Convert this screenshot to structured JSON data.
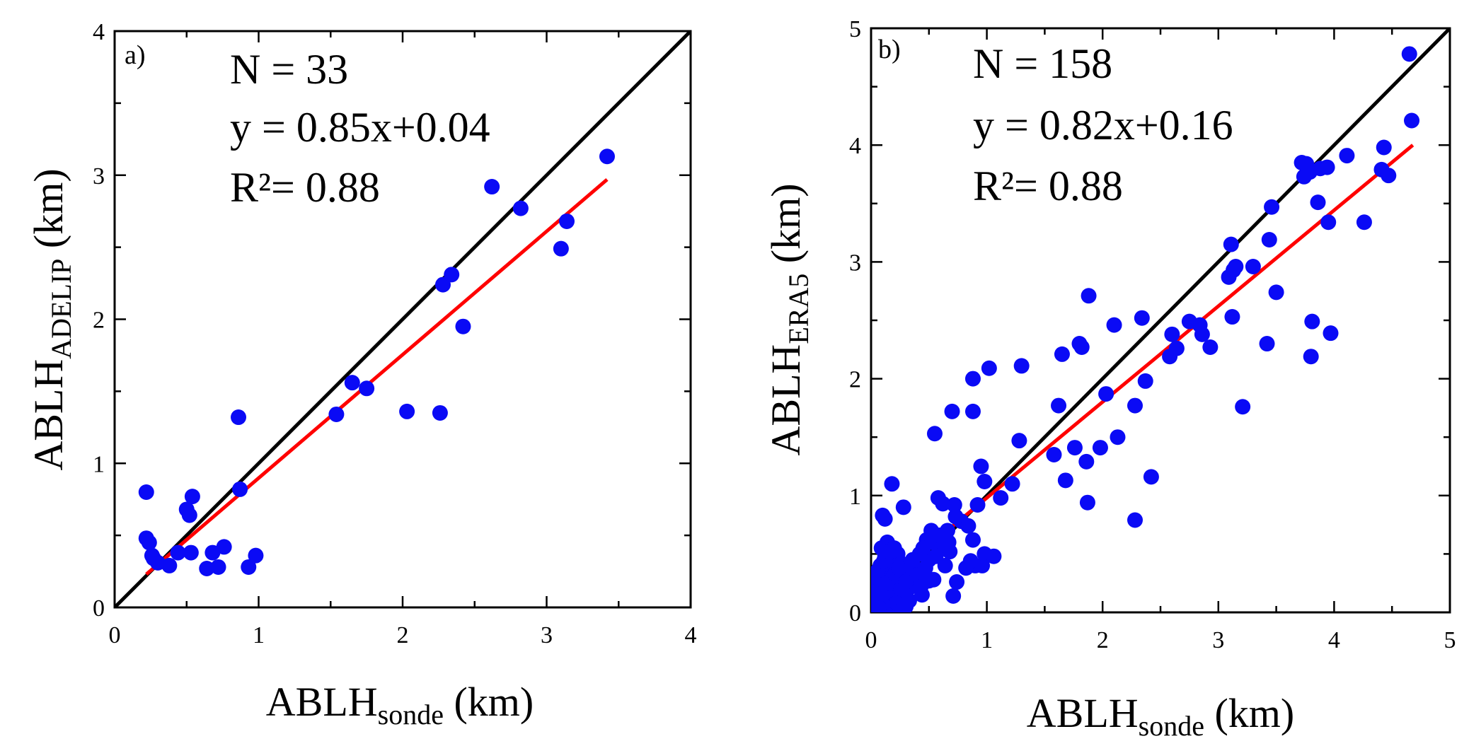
{
  "chart_data": [
    {
      "type": "scatter",
      "panel_label": "a)",
      "xlabel": {
        "main": "ABLH",
        "sub": "sonde",
        "unit": " (km)"
      },
      "ylabel": {
        "main": "ABLH",
        "sub": "ADELIP",
        "unit": " (km)"
      },
      "xlim": [
        0,
        4
      ],
      "ylim": [
        0,
        4
      ],
      "xticks": [
        "0",
        "1",
        "2",
        "3",
        "4"
      ],
      "yticks": [
        "0",
        "1",
        "2",
        "3",
        "4"
      ],
      "stats": {
        "n": "N = 33",
        "fit": "y = 0.85x+0.04",
        "r2": "R²= 0.88"
      },
      "one_to_one_line": {
        "x": [
          0,
          4
        ],
        "y": [
          0,
          4
        ],
        "color": "#000000"
      },
      "fit_line": {
        "x": [
          0.22,
          3.42
        ],
        "y": [
          0.23,
          2.97
        ],
        "color": "#ff0000"
      },
      "point_color": "#0a0af5",
      "points": [
        [
          0.22,
          0.8
        ],
        [
          0.22,
          0.48
        ],
        [
          0.24,
          0.45
        ],
        [
          0.26,
          0.36
        ],
        [
          0.3,
          0.31
        ],
        [
          0.38,
          0.29
        ],
        [
          0.44,
          0.38
        ],
        [
          0.5,
          0.68
        ],
        [
          0.52,
          0.64
        ],
        [
          0.53,
          0.38
        ],
        [
          0.54,
          0.77
        ],
        [
          0.64,
          0.27
        ],
        [
          0.68,
          0.38
        ],
        [
          0.72,
          0.28
        ],
        [
          0.76,
          0.42
        ],
        [
          0.86,
          1.32
        ],
        [
          0.87,
          0.82
        ],
        [
          0.93,
          0.28
        ],
        [
          0.98,
          0.36
        ],
        [
          1.54,
          1.34
        ],
        [
          1.65,
          1.56
        ],
        [
          1.75,
          1.52
        ],
        [
          2.03,
          1.36
        ],
        [
          2.26,
          1.35
        ],
        [
          2.28,
          2.24
        ],
        [
          2.34,
          2.31
        ],
        [
          2.42,
          1.95
        ],
        [
          2.62,
          2.92
        ],
        [
          2.82,
          2.77
        ],
        [
          3.1,
          2.49
        ],
        [
          3.14,
          2.68
        ],
        [
          3.42,
          3.13
        ],
        [
          0.27,
          0.34
        ]
      ]
    },
    {
      "type": "scatter",
      "panel_label": "b)",
      "xlabel": {
        "main": "ABLH",
        "sub": "sonde",
        "unit": " (km)"
      },
      "ylabel": {
        "main": "ABLH",
        "sub": "ERA5",
        "unit": " (km)"
      },
      "xlim": [
        0,
        5
      ],
      "ylim": [
        0,
        5
      ],
      "xticks": [
        "0",
        "1",
        "2",
        "3",
        "4",
        "5"
      ],
      "yticks": [
        "0",
        "1",
        "2",
        "3",
        "4",
        "5"
      ],
      "stats": {
        "n": "N = 158",
        "fit": "y = 0.82x+0.16",
        "r2": "R²= 0.88"
      },
      "one_to_one_line": {
        "x": [
          0,
          5
        ],
        "y": [
          0,
          5
        ],
        "color": "#000000"
      },
      "fit_line": {
        "x": [
          0.0,
          4.68
        ],
        "y": [
          0.16,
          4.0
        ],
        "color": "#ff0000"
      },
      "point_color": "#0a0af5",
      "points": [
        [
          0.02,
          0.05
        ],
        [
          0.03,
          0.22
        ],
        [
          0.04,
          0.12
        ],
        [
          0.05,
          0.3
        ],
        [
          0.06,
          0.02
        ],
        [
          0.07,
          0.18
        ],
        [
          0.08,
          0.4
        ],
        [
          0.09,
          0.55
        ],
        [
          0.1,
          0.08
        ],
        [
          0.1,
          0.83
        ],
        [
          0.11,
          0.28
        ],
        [
          0.12,
          0.8
        ],
        [
          0.12,
          0.48
        ],
        [
          0.13,
          0.15
        ],
        [
          0.14,
          0.6
        ],
        [
          0.15,
          0.35
        ],
        [
          0.15,
          0.05
        ],
        [
          0.16,
          0.22
        ],
        [
          0.17,
          0.45
        ],
        [
          0.18,
          1.1
        ],
        [
          0.18,
          0.1
        ],
        [
          0.19,
          0.3
        ],
        [
          0.2,
          0.55
        ],
        [
          0.2,
          0.02
        ],
        [
          0.21,
          0.4
        ],
        [
          0.22,
          0.18
        ],
        [
          0.23,
          0.5
        ],
        [
          0.24,
          0.25
        ],
        [
          0.25,
          0.08
        ],
        [
          0.26,
          0.42
        ],
        [
          0.27,
          0.12
        ],
        [
          0.28,
          0.9
        ],
        [
          0.29,
          0.3
        ],
        [
          0.3,
          0.05
        ],
        [
          0.32,
          0.2
        ],
        [
          0.35,
          0.38
        ],
        [
          0.38,
          0.25
        ],
        [
          0.42,
          0.5
        ],
        [
          0.44,
          0.15
        ],
        [
          0.46,
          0.32
        ],
        [
          0.48,
          0.62
        ],
        [
          0.5,
          0.45
        ],
        [
          0.52,
          0.7
        ],
        [
          0.54,
          0.28
        ],
        [
          0.55,
          1.53
        ],
        [
          0.57,
          0.58
        ],
        [
          0.58,
          0.98
        ],
        [
          0.6,
          0.65
        ],
        [
          0.62,
          0.93
        ],
        [
          0.64,
          0.4
        ],
        [
          0.66,
          0.7
        ],
        [
          0.68,
          0.52
        ],
        [
          0.7,
          1.72
        ],
        [
          0.71,
          0.14
        ],
        [
          0.72,
          0.92
        ],
        [
          0.74,
          0.26
        ],
        [
          0.78,
          0.78
        ],
        [
          0.88,
          2.0
        ],
        [
          0.88,
          0.62
        ],
        [
          0.88,
          1.72
        ],
        [
          0.9,
          0.4
        ],
        [
          0.92,
          0.92
        ],
        [
          0.95,
          1.25
        ],
        [
          0.96,
          0.4
        ],
        [
          0.98,
          1.12
        ],
        [
          0.98,
          0.5
        ],
        [
          1.02,
          2.09
        ],
        [
          1.06,
          0.48
        ],
        [
          1.12,
          0.98
        ],
        [
          1.22,
          1.1
        ],
        [
          1.28,
          1.47
        ],
        [
          1.3,
          2.11
        ],
        [
          1.58,
          1.35
        ],
        [
          1.62,
          1.77
        ],
        [
          1.65,
          2.21
        ],
        [
          1.68,
          1.13
        ],
        [
          1.76,
          1.41
        ],
        [
          1.8,
          2.3
        ],
        [
          1.82,
          2.27
        ],
        [
          1.86,
          1.29
        ],
        [
          1.87,
          0.94
        ],
        [
          1.88,
          2.71
        ],
        [
          1.98,
          1.41
        ],
        [
          2.03,
          1.87
        ],
        [
          2.1,
          2.46
        ],
        [
          2.13,
          1.5
        ],
        [
          2.28,
          1.77
        ],
        [
          2.28,
          0.79
        ],
        [
          2.34,
          2.52
        ],
        [
          2.37,
          1.98
        ],
        [
          2.42,
          1.16
        ],
        [
          2.58,
          2.19
        ],
        [
          2.6,
          2.38
        ],
        [
          2.64,
          2.26
        ],
        [
          2.75,
          2.49
        ],
        [
          2.84,
          2.46
        ],
        [
          2.86,
          2.38
        ],
        [
          2.93,
          2.27
        ],
        [
          3.09,
          2.87
        ],
        [
          3.11,
          3.15
        ],
        [
          3.12,
          2.53
        ],
        [
          3.13,
          2.93
        ],
        [
          3.15,
          2.96
        ],
        [
          3.21,
          1.76
        ],
        [
          3.3,
          2.96
        ],
        [
          3.42,
          2.3
        ],
        [
          3.44,
          3.19
        ],
        [
          3.46,
          3.47
        ],
        [
          3.5,
          2.74
        ],
        [
          3.72,
          3.85
        ],
        [
          3.74,
          3.73
        ],
        [
          3.76,
          3.84
        ],
        [
          3.79,
          3.77
        ],
        [
          3.8,
          2.19
        ],
        [
          3.81,
          2.49
        ],
        [
          3.86,
          3.51
        ],
        [
          3.88,
          3.8
        ],
        [
          3.94,
          3.81
        ],
        [
          3.95,
          3.34
        ],
        [
          3.97,
          2.39
        ],
        [
          4.11,
          3.91
        ],
        [
          4.26,
          3.34
        ],
        [
          4.41,
          3.79
        ],
        [
          4.43,
          3.98
        ],
        [
          4.47,
          3.74
        ],
        [
          4.65,
          4.78
        ],
        [
          4.67,
          4.21
        ],
        [
          0.06,
          0.36
        ],
        [
          0.08,
          0.1
        ],
        [
          0.09,
          0.16
        ],
        [
          0.11,
          0.44
        ],
        [
          0.13,
          0.25
        ],
        [
          0.14,
          0.02
        ],
        [
          0.16,
          0.52
        ],
        [
          0.17,
          0.12
        ],
        [
          0.19,
          0.06
        ],
        [
          0.21,
          0.33
        ],
        [
          0.22,
          0.08
        ],
        [
          0.24,
          0.38
        ],
        [
          0.26,
          0.2
        ],
        [
          0.27,
          0.03
        ],
        [
          0.3,
          0.26
        ],
        [
          0.33,
          0.1
        ],
        [
          0.36,
          0.45
        ],
        [
          0.4,
          0.32
        ],
        [
          0.43,
          0.22
        ],
        [
          0.45,
          0.55
        ],
        [
          0.47,
          0.38
        ],
        [
          0.5,
          0.27
        ],
        [
          0.53,
          0.6
        ],
        [
          0.56,
          0.48
        ],
        [
          0.59,
          0.66
        ],
        [
          0.63,
          0.58
        ],
        [
          0.67,
          0.6
        ],
        [
          0.73,
          0.82
        ],
        [
          0.82,
          0.38
        ],
        [
          0.84,
          0.74
        ],
        [
          0.86,
          0.44
        ]
      ]
    }
  ]
}
